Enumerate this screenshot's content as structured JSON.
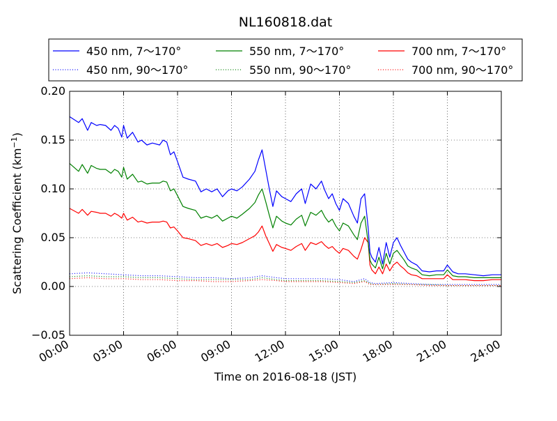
{
  "chart_data": {
    "type": "line",
    "title": "NL160818.dat",
    "xlabel": "Time on 2016-08-18 (JST)",
    "ylabel": "Scattering Coefficient (km",
    "ylabel_sup": "−1",
    "ylabel_close": ")",
    "xlim": [
      0,
      24
    ],
    "ylim": [
      -0.05,
      0.2
    ],
    "grid": true,
    "legend_position": "top, outside plot",
    "x_ticks": [
      0,
      3,
      6,
      9,
      12,
      15,
      18,
      21,
      24
    ],
    "x_tick_labels": [
      "00:00",
      "03:00",
      "06:00",
      "09:00",
      "12:00",
      "15:00",
      "18:00",
      "21:00",
      "24:00"
    ],
    "y_ticks": [
      -0.05,
      0,
      0.05,
      0.1,
      0.15,
      0.2
    ],
    "y_tick_labels": [
      "−0.05",
      "0.00",
      "0.05",
      "0.10",
      "0.15",
      "0.20"
    ],
    "series": [
      {
        "name": "450 nm, 7～170°",
        "color": "#0000ff",
        "style": "solid",
        "x": [
          0,
          0.5,
          0.7,
          1,
          1.2,
          1.5,
          1.7,
          2,
          2.3,
          2.5,
          2.7,
          2.9,
          3,
          3.2,
          3.5,
          3.8,
          4,
          4.3,
          4.6,
          5,
          5.2,
          5.4,
          5.6,
          5.8,
          6,
          6.3,
          6.6,
          7,
          7.3,
          7.6,
          7.9,
          8.2,
          8.5,
          8.8,
          9,
          9.3,
          9.6,
          10,
          10.3,
          10.5,
          10.7,
          10.9,
          11.1,
          11.3,
          11.5,
          11.8,
          12,
          12.3,
          12.6,
          12.9,
          13.1,
          13.4,
          13.7,
          14,
          14.2,
          14.4,
          14.6,
          14.8,
          15,
          15.2,
          15.5,
          15.8,
          16,
          16.2,
          16.4,
          16.6,
          16.7,
          16.8,
          17,
          17.2,
          17.4,
          17.6,
          17.8,
          18,
          18.2,
          18.4,
          18.6,
          18.8,
          19,
          19.3,
          19.6,
          20,
          20.4,
          20.8,
          21,
          21.3,
          21.6,
          22,
          22.5,
          23,
          23.5,
          24
        ],
        "y": [
          0.174,
          0.168,
          0.172,
          0.16,
          0.168,
          0.165,
          0.166,
          0.165,
          0.16,
          0.165,
          0.162,
          0.153,
          0.165,
          0.152,
          0.158,
          0.148,
          0.15,
          0.145,
          0.147,
          0.145,
          0.15,
          0.148,
          0.135,
          0.138,
          0.128,
          0.112,
          0.11,
          0.108,
          0.097,
          0.1,
          0.097,
          0.1,
          0.092,
          0.098,
          0.1,
          0.098,
          0.102,
          0.11,
          0.118,
          0.13,
          0.14,
          0.12,
          0.1,
          0.082,
          0.098,
          0.092,
          0.09,
          0.087,
          0.095,
          0.1,
          0.085,
          0.105,
          0.1,
          0.108,
          0.098,
          0.09,
          0.095,
          0.085,
          0.078,
          0.09,
          0.085,
          0.072,
          0.065,
          0.09,
          0.095,
          0.06,
          0.035,
          0.03,
          0.025,
          0.04,
          0.023,
          0.045,
          0.03,
          0.045,
          0.05,
          0.042,
          0.035,
          0.028,
          0.025,
          0.022,
          0.016,
          0.015,
          0.016,
          0.016,
          0.022,
          0.015,
          0.013,
          0.013,
          0.012,
          0.011,
          0.012,
          0.012
        ]
      },
      {
        "name": "550 nm, 7～170°",
        "color": "#008000",
        "style": "solid",
        "x": [
          0,
          0.5,
          0.7,
          1,
          1.2,
          1.5,
          1.7,
          2,
          2.3,
          2.5,
          2.7,
          2.9,
          3,
          3.2,
          3.5,
          3.8,
          4,
          4.3,
          4.6,
          5,
          5.2,
          5.4,
          5.6,
          5.8,
          6,
          6.3,
          6.6,
          7,
          7.3,
          7.6,
          7.9,
          8.2,
          8.5,
          8.8,
          9,
          9.3,
          9.6,
          10,
          10.3,
          10.5,
          10.7,
          10.9,
          11.1,
          11.3,
          11.5,
          11.8,
          12,
          12.3,
          12.6,
          12.9,
          13.1,
          13.4,
          13.7,
          14,
          14.2,
          14.4,
          14.6,
          14.8,
          15,
          15.2,
          15.5,
          15.8,
          16,
          16.2,
          16.4,
          16.6,
          16.7,
          16.8,
          17,
          17.2,
          17.4,
          17.6,
          17.8,
          18,
          18.2,
          18.4,
          18.6,
          18.8,
          19,
          19.3,
          19.6,
          20,
          20.4,
          20.8,
          21,
          21.3,
          21.6,
          22,
          22.5,
          23,
          23.5,
          24
        ],
        "y": [
          0.126,
          0.118,
          0.125,
          0.116,
          0.124,
          0.121,
          0.12,
          0.12,
          0.116,
          0.12,
          0.118,
          0.112,
          0.122,
          0.11,
          0.115,
          0.107,
          0.108,
          0.105,
          0.106,
          0.106,
          0.108,
          0.107,
          0.098,
          0.1,
          0.093,
          0.082,
          0.08,
          0.078,
          0.07,
          0.072,
          0.07,
          0.073,
          0.067,
          0.07,
          0.072,
          0.07,
          0.074,
          0.08,
          0.086,
          0.094,
          0.1,
          0.087,
          0.073,
          0.06,
          0.072,
          0.067,
          0.065,
          0.063,
          0.069,
          0.073,
          0.062,
          0.076,
          0.073,
          0.078,
          0.071,
          0.066,
          0.069,
          0.062,
          0.057,
          0.065,
          0.062,
          0.053,
          0.048,
          0.065,
          0.072,
          0.045,
          0.027,
          0.023,
          0.019,
          0.03,
          0.018,
          0.034,
          0.023,
          0.034,
          0.037,
          0.032,
          0.027,
          0.021,
          0.019,
          0.017,
          0.012,
          0.011,
          0.012,
          0.012,
          0.017,
          0.011,
          0.01,
          0.01,
          0.009,
          0.009,
          0.009,
          0.009
        ]
      },
      {
        "name": "700 nm, 7～170°",
        "color": "#ff0000",
        "style": "solid",
        "x": [
          0,
          0.5,
          0.7,
          1,
          1.2,
          1.5,
          1.7,
          2,
          2.3,
          2.5,
          2.7,
          2.9,
          3,
          3.2,
          3.5,
          3.8,
          4,
          4.3,
          4.6,
          5,
          5.2,
          5.4,
          5.6,
          5.8,
          6,
          6.3,
          6.6,
          7,
          7.3,
          7.6,
          7.9,
          8.2,
          8.5,
          8.8,
          9,
          9.3,
          9.6,
          10,
          10.3,
          10.5,
          10.7,
          10.9,
          11.1,
          11.3,
          11.5,
          11.8,
          12,
          12.3,
          12.6,
          12.9,
          13.1,
          13.4,
          13.7,
          14,
          14.2,
          14.4,
          14.6,
          14.8,
          15,
          15.2,
          15.5,
          15.8,
          16,
          16.2,
          16.4,
          16.6,
          16.7,
          16.8,
          17,
          17.2,
          17.4,
          17.6,
          17.8,
          18,
          18.2,
          18.4,
          18.6,
          18.8,
          19,
          19.3,
          19.6,
          20,
          20.4,
          20.8,
          21,
          21.3,
          21.6,
          22,
          22.5,
          23,
          23.5,
          24
        ],
        "y": [
          0.08,
          0.075,
          0.079,
          0.073,
          0.077,
          0.076,
          0.075,
          0.075,
          0.072,
          0.075,
          0.073,
          0.07,
          0.075,
          0.068,
          0.071,
          0.066,
          0.067,
          0.065,
          0.066,
          0.066,
          0.067,
          0.066,
          0.06,
          0.061,
          0.057,
          0.05,
          0.049,
          0.047,
          0.042,
          0.044,
          0.042,
          0.044,
          0.04,
          0.042,
          0.044,
          0.043,
          0.045,
          0.049,
          0.052,
          0.056,
          0.062,
          0.052,
          0.044,
          0.036,
          0.043,
          0.04,
          0.039,
          0.037,
          0.041,
          0.044,
          0.037,
          0.045,
          0.043,
          0.046,
          0.042,
          0.039,
          0.041,
          0.037,
          0.034,
          0.039,
          0.037,
          0.031,
          0.028,
          0.038,
          0.05,
          0.045,
          0.022,
          0.017,
          0.013,
          0.02,
          0.013,
          0.023,
          0.016,
          0.022,
          0.025,
          0.021,
          0.018,
          0.014,
          0.012,
          0.011,
          0.008,
          0.008,
          0.008,
          0.008,
          0.012,
          0.007,
          0.007,
          0.007,
          0.006,
          0.006,
          0.007,
          0.007
        ]
      },
      {
        "name": "450 nm, 90～170°",
        "color": "#0000ff",
        "style": "dotted",
        "x": [
          0,
          1,
          2,
          3,
          4,
          5,
          6,
          7,
          8,
          9,
          10,
          10.7,
          11.5,
          12,
          13,
          14,
          15,
          15.8,
          16.4,
          16.7,
          17,
          18,
          19,
          20,
          21,
          22,
          23,
          24
        ],
        "y": [
          0.013,
          0.014,
          0.013,
          0.012,
          0.011,
          0.011,
          0.01,
          0.009,
          0.009,
          0.008,
          0.009,
          0.011,
          0.009,
          0.008,
          0.008,
          0.008,
          0.007,
          0.005,
          0.008,
          0.004,
          0.003,
          0.004,
          0.003,
          0.002,
          0.002,
          0.002,
          0.002,
          0.002
        ]
      },
      {
        "name": "550 nm, 90～170°",
        "color": "#008000",
        "style": "dotted",
        "x": [
          0,
          1,
          2,
          3,
          4,
          5,
          6,
          7,
          8,
          9,
          10,
          10.7,
          11.5,
          12,
          13,
          14,
          15,
          15.8,
          16.4,
          16.7,
          17,
          18,
          19,
          20,
          21,
          22,
          23,
          24
        ],
        "y": [
          0.01,
          0.011,
          0.01,
          0.01,
          0.009,
          0.009,
          0.008,
          0.007,
          0.007,
          0.007,
          0.007,
          0.009,
          0.007,
          0.006,
          0.006,
          0.006,
          0.005,
          0.004,
          0.006,
          0.003,
          0.002,
          0.003,
          0.002,
          0.002,
          0.001,
          0.001,
          0.001,
          0.001
        ]
      },
      {
        "name": "700 nm, 90～170°",
        "color": "#ff0000",
        "style": "dotted",
        "x": [
          0,
          1,
          2,
          3,
          4,
          5,
          6,
          7,
          8,
          9,
          10,
          10.7,
          11.5,
          12,
          13,
          14,
          15,
          15.8,
          16.4,
          16.7,
          17,
          18,
          19,
          20,
          21,
          22,
          23,
          24
        ],
        "y": [
          0.008,
          0.009,
          0.008,
          0.008,
          0.007,
          0.007,
          0.006,
          0.006,
          0.005,
          0.005,
          0.006,
          0.007,
          0.006,
          0.005,
          0.005,
          0.005,
          0.004,
          0.003,
          0.005,
          0.002,
          0.002,
          0.002,
          0.002,
          0.001,
          0.001,
          0.001,
          0.001,
          0.001
        ]
      }
    ]
  }
}
